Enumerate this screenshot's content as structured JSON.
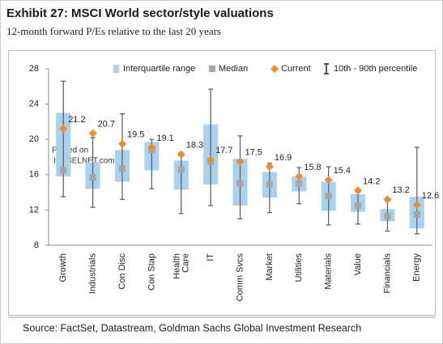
{
  "chart_data": {
    "type": "range",
    "title": "Exhibit 27: MSCI World sector/style valuations",
    "subtitle": "12-month forward P/Es relative to the last 20 years",
    "source": "Source: FactSet, Datastream, Goldman Sachs Global Investment Research",
    "watermark": [
      "Posted on",
      "ISABELNET.com"
    ],
    "categories": [
      "Growth",
      "Industrials",
      "Con Disc",
      "Con Stap",
      "Health Care",
      "IT",
      "Comm Svcs",
      "Market",
      "Utilities",
      "Materials",
      "Value",
      "Financials",
      "Energy"
    ],
    "series": [
      {
        "name": "Interquartile range",
        "color": "#a9d1f0",
        "low": [
          15.8,
          14.4,
          15.2,
          16.5,
          14.3,
          14.9,
          12.5,
          13.4,
          14.1,
          11.9,
          11.8,
          10.7,
          9.9
        ],
        "high": [
          23.0,
          17.4,
          18.8,
          19.7,
          17.6,
          21.7,
          17.8,
          16.3,
          15.8,
          15.2,
          13.8,
          12.1,
          13.5
        ]
      },
      {
        "name": "Median",
        "color": "#a6a6a6",
        "values": [
          16.5,
          15.7,
          16.7,
          18.8,
          16.6,
          17.5,
          15.0,
          14.9,
          15.0,
          13.6,
          12.5,
          11.3,
          11.5
        ]
      },
      {
        "name": "Current",
        "color": "#f28c28",
        "values": [
          21.2,
          20.7,
          19.5,
          19.1,
          18.3,
          17.7,
          17.5,
          16.9,
          15.8,
          15.4,
          14.2,
          13.2,
          12.6
        ]
      },
      {
        "name": "10th - 90th percentile",
        "color": "#595959",
        "low": [
          13.5,
          12.3,
          13.2,
          14.4,
          11.6,
          12.5,
          11.0,
          11.7,
          12.7,
          10.3,
          10.4,
          9.6,
          9.3
        ],
        "high": [
          26.6,
          20.2,
          22.9,
          20.0,
          18.5,
          25.7,
          20.4,
          17.3,
          16.8,
          16.9,
          14.1,
          13.0,
          19.1
        ]
      }
    ],
    "ylim": [
      8,
      28
    ],
    "yticks": [
      8,
      12,
      16,
      20,
      24,
      28
    ]
  }
}
